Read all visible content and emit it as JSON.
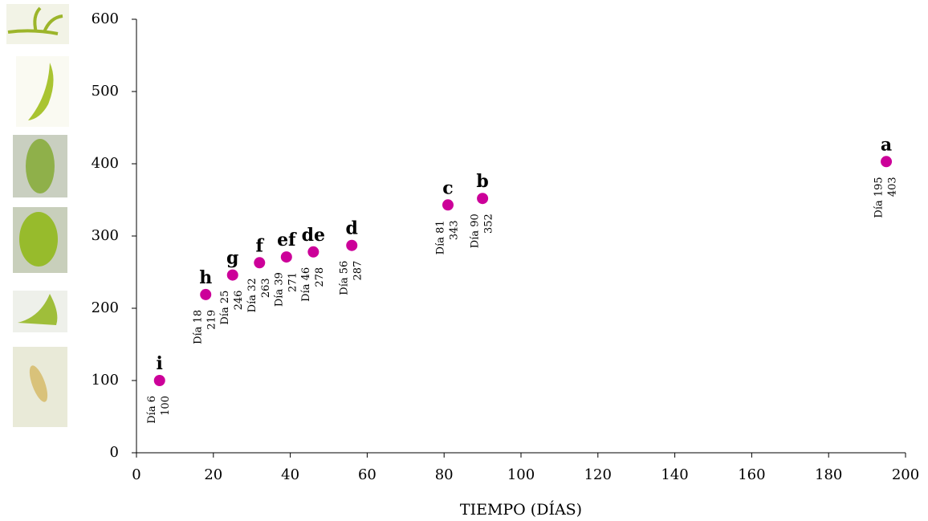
{
  "chart_data": {
    "type": "scatter",
    "x_label": "TIEMPO (DÍAS)",
    "x": [
      6,
      18,
      25,
      32,
      39,
      46,
      56,
      81,
      90,
      195
    ],
    "values": [
      100,
      219,
      246,
      263,
      271,
      278,
      287,
      343,
      352,
      403
    ],
    "point_labels": [
      "Día 6",
      "Día 18",
      "Día 25",
      "Día 32",
      "Día 39",
      "Día 46",
      "Día 56",
      "Día 81",
      "Día 90",
      "Día 195"
    ],
    "letters": [
      "i",
      "h",
      "g",
      "f",
      "ef",
      "de",
      "d",
      "c",
      "b",
      "a"
    ],
    "color": "#cc0099",
    "xlim": [
      0,
      200
    ],
    "xticks": [
      0,
      20,
      40,
      60,
      80,
      100,
      120,
      140,
      160,
      180,
      200
    ],
    "ylim": [
      0,
      600
    ],
    "yticks": [
      0,
      100,
      200,
      300,
      400,
      500,
      600
    ]
  }
}
